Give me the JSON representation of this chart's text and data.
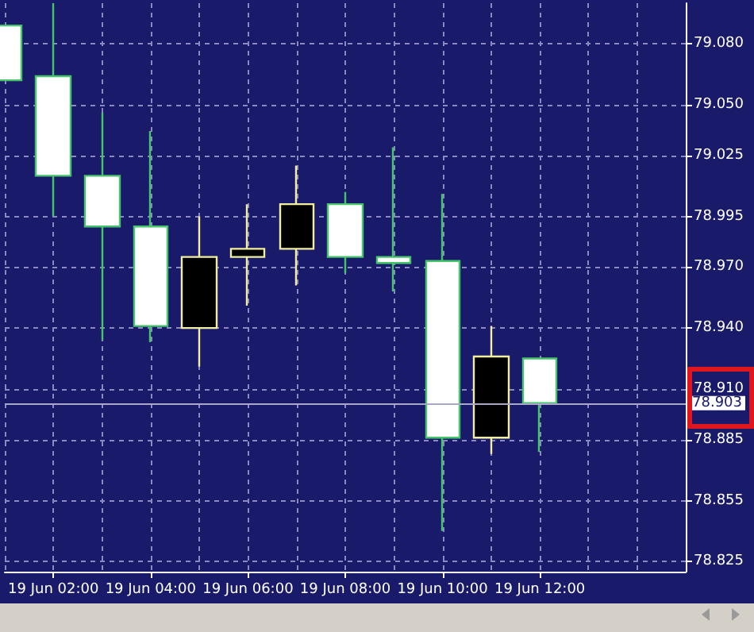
{
  "chart_data": {
    "type": "candlestick",
    "categories": [
      null,
      "19 Jun 02:00",
      null,
      "19 Jun 04:00",
      null,
      "19 Jun 06:00",
      null,
      "19 Jun 08:00",
      null,
      "19 Jun 10:00",
      null,
      "19 Jun 12:00",
      null,
      null,
      null
    ],
    "ohlc": [
      [
        79.089,
        79.089,
        79.062,
        79.062
      ],
      [
        79.064,
        79.1,
        78.995,
        79.015
      ],
      [
        79.015,
        79.046,
        78.934,
        78.99
      ],
      [
        78.99,
        79.037,
        78.933,
        78.941
      ],
      [
        78.94,
        78.995,
        78.921,
        78.975
      ],
      [
        78.975,
        79.001,
        78.951,
        78.979
      ],
      [
        78.979,
        79.02,
        78.961,
        79.001
      ],
      [
        79.001,
        79.007,
        78.967,
        78.975
      ],
      [
        78.975,
        79.029,
        78.958,
        78.972
      ],
      [
        78.973,
        79.006,
        78.84,
        78.886
      ],
      [
        78.886,
        78.941,
        78.878,
        78.926
      ],
      [
        78.925,
        78.925,
        78.879,
        78.903
      ],
      null,
      null,
      null
    ],
    "colors": [
      "#ffffff",
      "#ffffff",
      "#ffffff",
      "#ffffff",
      "#000000",
      "#000000",
      "#000000",
      "#ffffff",
      "#ffffff",
      "#ffffff",
      "#000000",
      "#ffffff",
      null,
      null,
      null
    ],
    "ylim": [
      78.82,
      79.1
    ],
    "yticks": [
      78.825,
      78.855,
      78.885,
      {
        "value": 78.91,
        "label": "78.910"
      },
      {
        "value": 78.94,
        "label": "78.940"
      },
      {
        "value": 78.97,
        "label": "78.970"
      },
      78.995,
      79.025,
      {
        "value": 79.05,
        "label": "79.050"
      },
      {
        "value": 79.08,
        "label": "79.080"
      }
    ],
    "ref_lines": [
      {
        "axis": "y",
        "value": 78.903,
        "label": "78.903",
        "color": "#a8a8c8"
      }
    ],
    "grid": true
  }
}
